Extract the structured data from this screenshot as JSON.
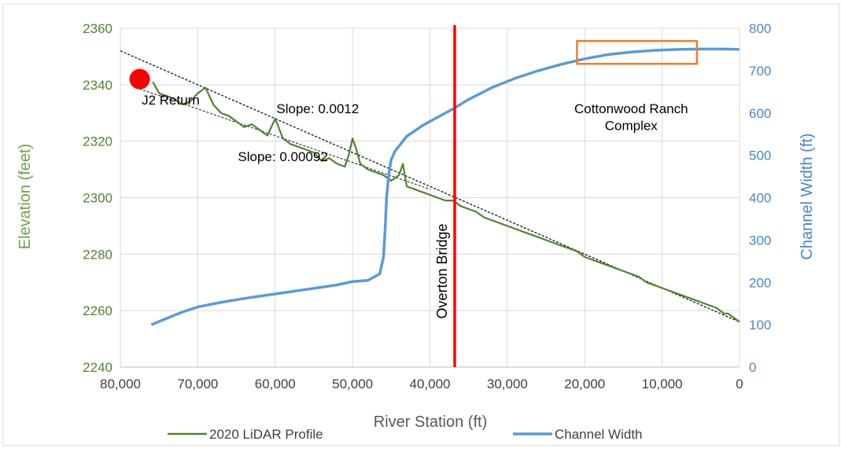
{
  "chart_data": {
    "type": "line",
    "title": "",
    "xlabel": "River Station (ft)",
    "ylabel": "Elevation (feet)",
    "y2label": "Channel Width (ft)",
    "xlim": [
      80000,
      0
    ],
    "x_reversed": true,
    "ylim": [
      2240,
      2360
    ],
    "y2lim": [
      0,
      800
    ],
    "x_ticks": [
      "80,000",
      "70,000",
      "60,000",
      "50,000",
      "40,000",
      "30,000",
      "20,000",
      "10,000",
      "0"
    ],
    "y_ticks": [
      "2240",
      "2260",
      "2280",
      "2300",
      "2320",
      "2340",
      "2360"
    ],
    "y2_ticks": [
      "0",
      "100",
      "200",
      "300",
      "400",
      "500",
      "600",
      "700",
      "800"
    ],
    "grid": true,
    "legend_position": "bottom",
    "colors": {
      "profile": "#548235",
      "width": "#5b9bd5",
      "bridge": "#ff0000",
      "marker": "#ff0000",
      "highlight": "#ed7d31",
      "trend": "#000000",
      "grid": "#d9d9d9"
    },
    "series": [
      {
        "name": "2020 LiDAR Profile",
        "axis": "left",
        "x": [
          75800,
          75000,
          74000,
          73000,
          72000,
          71000,
          70000,
          69000,
          68000,
          67000,
          66000,
          65000,
          64000,
          63000,
          62000,
          61000,
          60000,
          59000,
          58000,
          57000,
          56000,
          55000,
          54000,
          53000,
          52000,
          51000,
          50500,
          50000,
          49500,
          49000,
          48000,
          47000,
          46000,
          45000,
          44000,
          43500,
          43000,
          42000,
          41000,
          40000,
          39000,
          38000,
          37000,
          36000,
          35000,
          34000,
          33000,
          32000,
          31000,
          30000,
          29000,
          28000,
          27000,
          26000,
          25000,
          24000,
          23000,
          22000,
          21000,
          20000,
          19000,
          18000,
          17000,
          16000,
          15000,
          14000,
          13000,
          12000,
          11000,
          10000,
          9000,
          8000,
          7000,
          6000,
          5000,
          4000,
          3000,
          2000,
          1500,
          1000,
          500,
          0
        ],
        "y": [
          2341,
          2337,
          2336,
          2335,
          2333,
          2334,
          2337,
          2339,
          2333,
          2330,
          2329,
          2327,
          2325,
          2326,
          2324,
          2322,
          2328,
          2321,
          2319,
          2318,
          2317,
          2316,
          2313,
          2314,
          2312,
          2311,
          2315,
          2321,
          2317,
          2312,
          2310,
          2309,
          2308,
          2306,
          2308,
          2312,
          2304,
          2303,
          2302,
          2301,
          2300,
          2299,
          2299,
          2297,
          2296,
          2295,
          2293,
          2292,
          2291,
          2290,
          2289,
          2288,
          2287,
          2286,
          2285,
          2284,
          2283,
          2282,
          2281,
          2279,
          2278,
          2277,
          2276,
          2275,
          2274,
          2273,
          2272,
          2270,
          2269,
          2268,
          2267,
          2266,
          2265,
          2264,
          2263,
          2262,
          2261,
          2259,
          2259,
          2258,
          2257,
          2256
        ]
      },
      {
        "name": "Channel Width",
        "axis": "right",
        "x": [
          76000,
          74000,
          72000,
          70000,
          67000,
          64000,
          61000,
          58000,
          55000,
          52000,
          50000,
          48000,
          46500,
          46000,
          45800,
          45600,
          45400,
          45200,
          45000,
          44500,
          43000,
          41000,
          39000,
          37000,
          35000,
          32000,
          29000,
          26000,
          23000,
          20000,
          17000,
          14000,
          11000,
          8000,
          5000,
          2000,
          0
        ],
        "y": [
          100,
          115,
          130,
          142,
          153,
          162,
          170,
          178,
          186,
          194,
          202,
          205,
          220,
          260,
          320,
          400,
          440,
          470,
          490,
          510,
          545,
          570,
          590,
          610,
          632,
          660,
          682,
          700,
          715,
          728,
          738,
          744,
          748,
          750,
          751,
          751,
          750
        ]
      }
    ],
    "trend_lines": [
      {
        "from": [
          80000,
          2352
        ],
        "to": [
          0,
          2256
        ]
      },
      {
        "from": [
          78000,
          2339
        ],
        "to": [
          40000,
          2303
        ]
      }
    ],
    "vertical_line": {
      "x": 36800,
      "label": "Overton Bridge"
    },
    "marker": {
      "x": 77500,
      "y": 2342
    },
    "highlight_box": {
      "x_from": 21000,
      "x_to": 5500,
      "y2_from": 716,
      "y2_to": 770
    },
    "annotations": [
      {
        "text": "J2 Return",
        "x": 73500,
        "y": 2333
      },
      {
        "text": "Slope: 0.0012",
        "x": 54500,
        "y": 2330
      },
      {
        "text": "Slope: 0.00092",
        "x": 59000,
        "y": 2313
      },
      {
        "text": "Cottonwood Ranch",
        "x": 14000,
        "y": 2330
      },
      {
        "text": "Complex",
        "x": 14000,
        "y": 2324
      }
    ]
  }
}
